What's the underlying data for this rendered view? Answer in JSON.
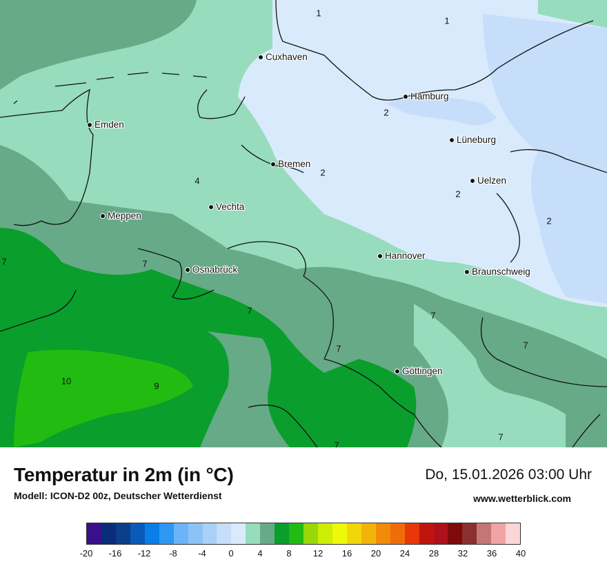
{
  "map": {
    "cities": [
      {
        "name": "Cuxhaven"
      },
      {
        "name": "Hamburg"
      },
      {
        "name": "Emden"
      },
      {
        "name": "Lüneburg"
      },
      {
        "name": "Bremen"
      },
      {
        "name": "Uelzen"
      },
      {
        "name": "Vechta"
      },
      {
        "name": "Meppen"
      },
      {
        "name": "Hannover"
      },
      {
        "name": "Osnabrück"
      },
      {
        "name": "Braunschweig"
      },
      {
        "name": "Göttingen"
      }
    ],
    "isoline_labels": [
      "1",
      "1",
      "2",
      "2",
      "2",
      "2",
      "4",
      "7",
      "7",
      "7",
      "7",
      "7",
      "7",
      "7",
      "7",
      "10",
      "9"
    ]
  },
  "header": {
    "title": "Temperatur in 2m (in °C)",
    "model": "Modell: ICON-D2 00z, Deutscher Wetterdienst",
    "datetime": "Do, 15.01.2026 03:00 Uhr",
    "website": "www.wetterblick.com"
  },
  "colorbar": {
    "colors": [
      "#3a0f8c",
      "#0a2d7a",
      "#0b3f8a",
      "#0a5aba",
      "#0a7ee6",
      "#2e97f5",
      "#6cb4f7",
      "#8cc3f7",
      "#a9d0f7",
      "#c6defa",
      "#d9eafc",
      "#97dcbd",
      "#67aa88",
      "#0a9e2c",
      "#22bb12",
      "#96d80a",
      "#cdee04",
      "#eef80a",
      "#f2d60a",
      "#f2b40a",
      "#f28a0a",
      "#f06c0a",
      "#e8380a",
      "#c2140e",
      "#b0101a",
      "#7e0a0a",
      "#8a3030",
      "#c47676",
      "#f2a4a4",
      "#fcd6d6"
    ],
    "ticks": [
      "-20",
      "-16",
      "-12",
      "-8",
      "-4",
      "0",
      "4",
      "8",
      "12",
      "16",
      "20",
      "24",
      "28",
      "32",
      "36",
      "40"
    ],
    "min": -20,
    "max": 40
  }
}
